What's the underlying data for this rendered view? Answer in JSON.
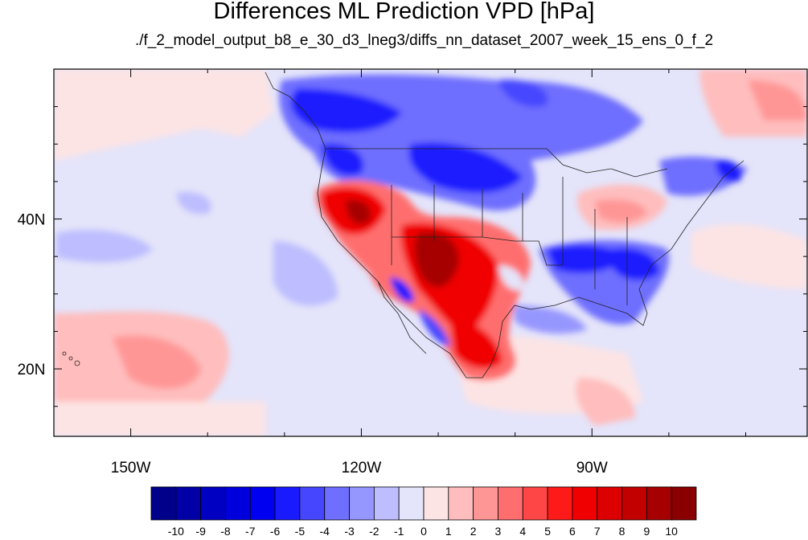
{
  "chart_data": {
    "type": "heatmap",
    "title": "Differences ML Prediction VPD [hPa]",
    "subtitle": "./f_2_model_output_b8_e_30_d3_lneg3/diffs_nn_dataset_2007_week_15_ens_0_f_2",
    "lon_range": [
      -160,
      -62
    ],
    "lat_range": [
      11,
      60
    ],
    "x_ticks": [
      {
        "lon": -150,
        "label": "150W"
      },
      {
        "lon": -120,
        "label": "120W"
      },
      {
        "lon": -90,
        "label": "90W"
      }
    ],
    "y_ticks": [
      {
        "lat": 40,
        "label": "40N"
      },
      {
        "lat": 20,
        "label": "20N"
      }
    ],
    "colorbar": {
      "levels": [
        "-10",
        "-9",
        "-8",
        "-7",
        "-6",
        "-5",
        "-4",
        "-3",
        "-2",
        "-1",
        "0",
        "1",
        "2",
        "3",
        "4",
        "5",
        "6",
        "7",
        "8",
        "9",
        "10"
      ],
      "colors": [
        "#00008a",
        "#0000a6",
        "#0000c2",
        "#0000dc",
        "#0000f0",
        "#1a1aff",
        "#4646ff",
        "#6e6eff",
        "#9696ff",
        "#bdbdff",
        "#e4e4fa",
        "#fde4e4",
        "#ffbdbd",
        "#ff9696",
        "#ff6e6e",
        "#ff4646",
        "#ff1a1a",
        "#f00000",
        "#dc0000",
        "#c20000",
        "#a60000",
        "#8a0000"
      ]
    }
  }
}
